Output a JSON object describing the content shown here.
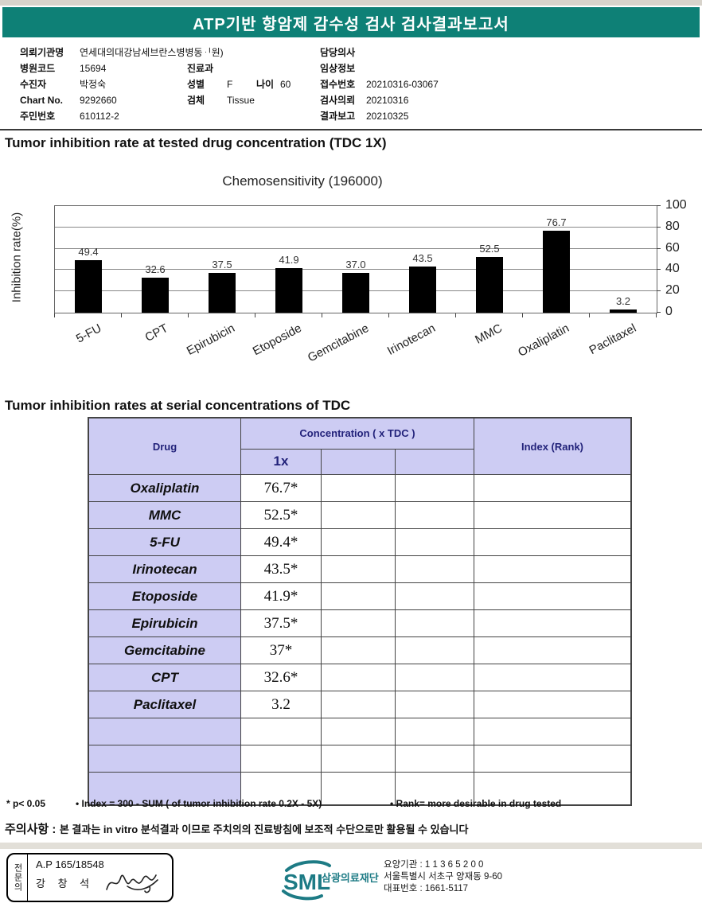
{
  "header": {
    "title": "ATP기반 항암제 감수성 검사 검사결과보고서"
  },
  "patient_info": {
    "rows": [
      {
        "l1": "의뢰기관명",
        "v1": "연세대의대강남세브란스병병동ᆡ원)",
        "l3": "담당의사",
        "v3": ""
      },
      {
        "l1": "병원코드",
        "v1": "15694",
        "l2": "진료과",
        "v2": "",
        "l3": "임상정보",
        "v3": ""
      },
      {
        "l1": "수진자",
        "v1": "박정숙",
        "l2": "성별",
        "v2": "F",
        "l2b": "나이",
        "v2b": "60",
        "l3": "접수번호",
        "v3": "20210316-03067"
      },
      {
        "l1": "Chart No.",
        "v1": "9292660",
        "l2": "검체",
        "v2": "Tissue",
        "l3": "검사의뢰",
        "v3": "20210316"
      },
      {
        "l1": "주민번호",
        "v1": "610112-2",
        "l3": "결과보고",
        "v3": "20210325"
      }
    ]
  },
  "sections": {
    "chart_section_title": "Tumor inhibition rate at tested drug concentration (TDC 1X)",
    "table_section_title": "Tumor inhibition rates at serial concentrations of TDC"
  },
  "chart_data": {
    "type": "bar",
    "title": "Chemosensitivity (196000)",
    "ylabel": "Inhibition rate(%)",
    "categories": [
      "5-FU",
      "CPT",
      "Epirubicin",
      "Etoposide",
      "Gemcitabine",
      "Irinotecan",
      "MMC",
      "Oxaliplatin",
      "Paclitaxel"
    ],
    "values": [
      49.4,
      32.6,
      37.5,
      41.9,
      37.0,
      43.5,
      52.5,
      76.7,
      3.2
    ],
    "value_labels": [
      "49.4",
      "32.6",
      "37.5",
      "41.9",
      "37.0",
      "43.5",
      "52.5",
      "76.7",
      "3.2"
    ],
    "ylim": [
      0,
      100
    ],
    "yticks": [
      0,
      20,
      40,
      60,
      80,
      100
    ],
    "ytick_side": "right",
    "bar_color": "#000000",
    "grid": true,
    "legend": "none"
  },
  "table": {
    "col_drug": "Drug",
    "col_concentration": "Concentration ( x TDC )",
    "col_index": "Index (Rank)",
    "sub_cols": [
      "1x",
      "",
      ""
    ],
    "rows": [
      {
        "drug": "Oxaliplatin",
        "c1": "76.7*",
        "c2": "",
        "c3": "",
        "index": ""
      },
      {
        "drug": "MMC",
        "c1": "52.5*",
        "c2": "",
        "c3": "",
        "index": ""
      },
      {
        "drug": "5-FU",
        "c1": "49.4*",
        "c2": "",
        "c3": "",
        "index": ""
      },
      {
        "drug": "Irinotecan",
        "c1": "43.5*",
        "c2": "",
        "c3": "",
        "index": ""
      },
      {
        "drug": "Etoposide",
        "c1": "41.9*",
        "c2": "",
        "c3": "",
        "index": ""
      },
      {
        "drug": "Epirubicin",
        "c1": "37.5*",
        "c2": "",
        "c3": "",
        "index": ""
      },
      {
        "drug": "Gemcitabine",
        "c1": "37*",
        "c2": "",
        "c3": "",
        "index": ""
      },
      {
        "drug": "CPT",
        "c1": "32.6*",
        "c2": "",
        "c3": "",
        "index": ""
      },
      {
        "drug": "Paclitaxel",
        "c1": "3.2",
        "c2": "",
        "c3": "",
        "index": ""
      },
      {
        "drug": "",
        "c1": "",
        "c2": "",
        "c3": "",
        "index": ""
      },
      {
        "drug": "",
        "c1": "",
        "c2": "",
        "c3": "",
        "index": ""
      },
      {
        "drug": "",
        "c1": "",
        "c2": "",
        "c3": "",
        "index": ""
      }
    ]
  },
  "notes": {
    "p_note": "* p< 0.05",
    "index_note": "• Index = 300 - SUM ( of tumor inhibition rate 0.2X  -  5X)",
    "rank_note": "• Rank= more desirable in drug tested"
  },
  "caution": {
    "label": "주의사항 :",
    "text": "본 결과는 in vitro 분석결과 이므로 주치의의 진료방침에 보조적 수단으로만 활용될 수 있습니다"
  },
  "stamp": {
    "role": "전문의",
    "license": "A.P 165/18548",
    "name": "강 창 석"
  },
  "footer": {
    "logo_text": "SML",
    "org_name": "삼광의료재단",
    "org_no": "요양기관 : 1 1 3 6 5 2 0 0",
    "address": "서울특별시 서초구 양재동 9-60",
    "tel": "대표번호 : 1661-5117",
    "logo_color": "#1d7b85"
  },
  "colors": {
    "header_band": "#0e8076",
    "table_header_bg": "#cdccf3",
    "table_header_text": "#22227a",
    "bar": "#000000"
  }
}
